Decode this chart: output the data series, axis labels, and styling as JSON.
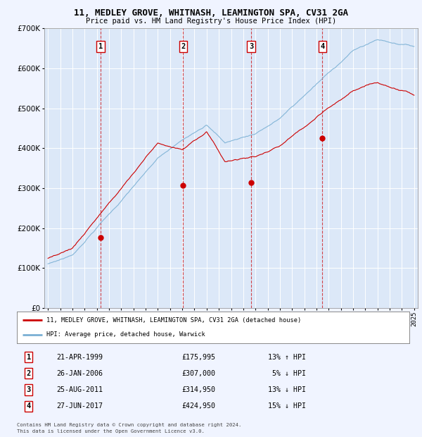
{
  "title": "11, MEDLEY GROVE, WHITNASH, LEAMINGTON SPA, CV31 2GA",
  "subtitle": "Price paid vs. HM Land Registry's House Price Index (HPI)",
  "legend_line1": "11, MEDLEY GROVE, WHITNASH, LEAMINGTON SPA, CV31 2GA (detached house)",
  "legend_line2": "HPI: Average price, detached house, Warwick",
  "footnote1": "Contains HM Land Registry data © Crown copyright and database right 2024.",
  "footnote2": "This data is licensed under the Open Government Licence v3.0.",
  "transactions": [
    {
      "num": 1,
      "date": "21-APR-1999",
      "price": 175995,
      "hpi_rel": "13% ↑ HPI",
      "year": 1999.3
    },
    {
      "num": 2,
      "date": "26-JAN-2006",
      "price": 307000,
      "hpi_rel": "5% ↓ HPI",
      "year": 2006.07
    },
    {
      "num": 3,
      "date": "25-AUG-2011",
      "price": 314950,
      "hpi_rel": "13% ↓ HPI",
      "year": 2011.65
    },
    {
      "num": 4,
      "date": "27-JUN-2017",
      "price": 424950,
      "hpi_rel": "15% ↓ HPI",
      "year": 2017.49
    }
  ],
  "background_color": "#f0f4ff",
  "plot_bg_color": "#dce8f8",
  "red_color": "#cc0000",
  "blue_color": "#7ab0d4",
  "grid_color": "#ffffff",
  "ylim": [
    0,
    700000
  ],
  "xlim_start": 1994.7,
  "xlim_end": 2025.3
}
